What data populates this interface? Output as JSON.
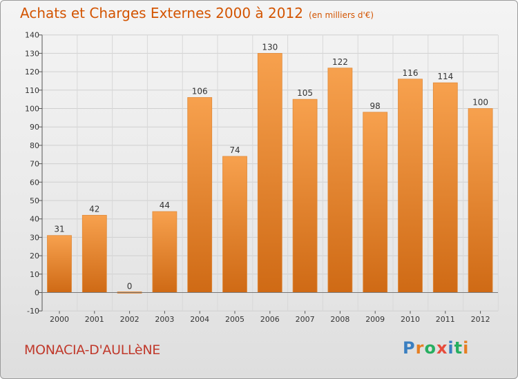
{
  "header": {
    "title": "Achats et Charges Externes 2000 à 2012",
    "unit": "(en milliers d'€)"
  },
  "footer": {
    "city": "MONACIA-D'AULLèNE",
    "logo": "Proxiti"
  },
  "chart_data": {
    "type": "bar",
    "title": "Achats et Charges Externes 2000 à 2012",
    "subtitle": "(en milliers d'€)",
    "categories": [
      "2000",
      "2001",
      "2002",
      "2003",
      "2004",
      "2005",
      "2006",
      "2007",
      "2008",
      "2009",
      "2010",
      "2011",
      "2012"
    ],
    "values": [
      31,
      42,
      0,
      44,
      106,
      74,
      130,
      105,
      122,
      98,
      116,
      114,
      100
    ],
    "ylim": [
      -10,
      140
    ],
    "yticks": [
      -10,
      0,
      10,
      20,
      30,
      40,
      50,
      60,
      70,
      80,
      90,
      100,
      110,
      120,
      130,
      140
    ],
    "grid": true,
    "colors": {
      "bar_top": "#f7a14e",
      "bar_bottom": "#cf6a15",
      "title": "#d35400",
      "city": "#c0392b"
    }
  }
}
